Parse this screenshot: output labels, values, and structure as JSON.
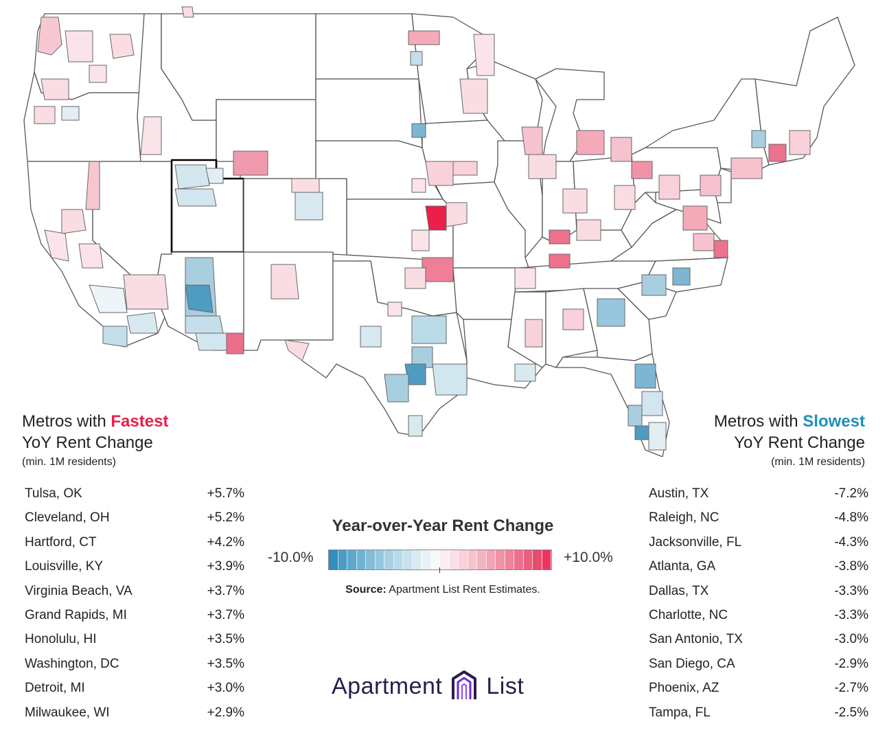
{
  "map": {
    "highlight_fill": "#e8204a",
    "state_stroke": "#555555",
    "metro_stroke": "#666666",
    "land_fill": "#ffffff"
  },
  "fastest": {
    "title_prefix": "Metros with ",
    "title_highlight": "Fastest",
    "title_line2": "YoY Rent Change",
    "subtitle": "(min. 1M residents)",
    "accent": "#e8204a",
    "rows": [
      {
        "metro": "Tulsa, OK",
        "value": "+5.7%"
      },
      {
        "metro": "Cleveland, OH",
        "value": "+5.2%"
      },
      {
        "metro": "Hartford, CT",
        "value": "+4.2%"
      },
      {
        "metro": "Louisville, KY",
        "value": "+3.9%"
      },
      {
        "metro": "Virginia Beach, VA",
        "value": "+3.7%"
      },
      {
        "metro": "Grand Rapids, MI",
        "value": "+3.7%"
      },
      {
        "metro": "Honolulu, HI",
        "value": "+3.5%"
      },
      {
        "metro": "Washington, DC",
        "value": "+3.5%"
      },
      {
        "metro": "Detroit, MI",
        "value": "+3.0%"
      },
      {
        "metro": "Milwaukee, WI",
        "value": "+2.9%"
      }
    ]
  },
  "slowest": {
    "title_prefix": "Metros with ",
    "title_highlight": "Slowest",
    "title_line2": "YoY Rent Change",
    "subtitle": "(min. 1M residents)",
    "accent": "#1f8fb8",
    "rows": [
      {
        "metro": "Austin, TX",
        "value": "-7.2%"
      },
      {
        "metro": "Raleigh, NC",
        "value": "-4.8%"
      },
      {
        "metro": "Jacksonville, FL",
        "value": "-4.3%"
      },
      {
        "metro": "Atlanta, GA",
        "value": "-3.8%"
      },
      {
        "metro": "Dallas, TX",
        "value": "-3.3%"
      },
      {
        "metro": "Charlotte, NC",
        "value": "-3.3%"
      },
      {
        "metro": "San Antonio, TX",
        "value": "-3.0%"
      },
      {
        "metro": "San Diego, CA",
        "value": "-2.9%"
      },
      {
        "metro": "Phoenix, AZ",
        "value": "-2.7%"
      },
      {
        "metro": "Tampa, FL",
        "value": "-2.5%"
      }
    ]
  },
  "legend": {
    "title": "Year-over-Year Rent Change",
    "min_label": "-10.0%",
    "max_label": "+10.0%",
    "source_bold": "Source:",
    "source_text": " Apartment List Rent Estimates.",
    "colors": [
      "#2f8fbf",
      "#4a9cc6",
      "#5fa8cd",
      "#72b3d3",
      "#85bdd9",
      "#97c7df",
      "#a8d0e4",
      "#b8d9e9",
      "#c8e2ee",
      "#d8eaf2",
      "#e8f2f6",
      "#f6f8f9",
      "#fbeef1",
      "#fae0e6",
      "#f8d1da",
      "#f6c2ce",
      "#f4b3c2",
      "#f2a3b5",
      "#f093a8",
      "#ee839b",
      "#ec728d",
      "#ea5f7e",
      "#e94b6f",
      "#e8365e"
    ]
  },
  "logo": {
    "word_left": "Apartment",
    "word_right": "List",
    "color": "#2a1d4a",
    "mark_color": "#6a2bd9"
  }
}
